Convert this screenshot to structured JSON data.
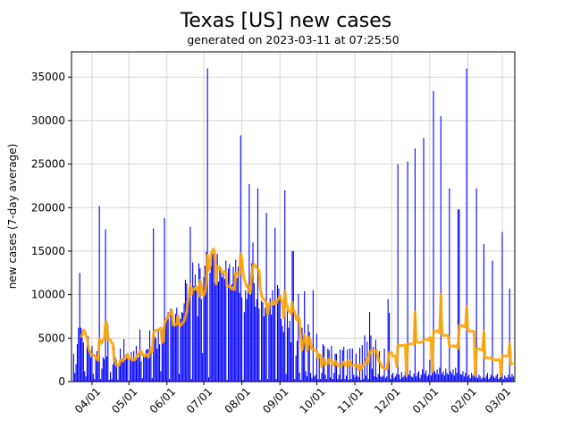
{
  "chart_data": {
    "type": "bar",
    "title": "Texas [US] new cases",
    "subtitle": "generated on 2023-03-11 at 07:25:50",
    "xlabel": "",
    "ylabel": "new cases (7-day average)",
    "ylim": [
      0,
      37900
    ],
    "y_ticks": [
      0,
      5000,
      10000,
      15000,
      20000,
      25000,
      30000,
      35000
    ],
    "x_tick_labels": [
      "04/01",
      "05/01",
      "06/01",
      "07/01",
      "08/01",
      "09/01",
      "10/01",
      "11/01",
      "12/01",
      "01/01",
      "02/01",
      "03/01"
    ],
    "dates_from": "03/17",
    "dates_to": "03/10",
    "grid": true,
    "colors": {
      "bars": "#0000ff",
      "average_line": "#ffa500",
      "grid": "#cccccc"
    },
    "daily": [
      3200,
      1000,
      2000,
      4300,
      6200,
      12500,
      6200,
      5800,
      4500,
      1200,
      600,
      4200,
      5200,
      3600,
      2800,
      4100,
      900,
      300,
      2900,
      3500,
      2600,
      20200,
      300,
      1500,
      2800,
      2600,
      17500,
      2900,
      6500,
      200,
      1100,
      300,
      2000,
      4000,
      2800,
      2500,
      200,
      1800,
      3800,
      2600,
      2700,
      4900,
      2500,
      3000,
      2800,
      100,
      2600,
      3400,
      2600,
      3500,
      2700,
      4100,
      3100,
      2800,
      6000,
      2300,
      400,
      2900,
      3000,
      3600,
      3800,
      3700,
      5900,
      3600,
      400,
      17600,
      5200,
      5000,
      3800,
      6000,
      4300,
      1200,
      5900,
      6200,
      18800,
      6800,
      7400,
      8000,
      300,
      8400,
      7700,
      7000,
      6500,
      7800,
      8500,
      7300,
      900,
      7200,
      8000,
      7900,
      9000,
      11700,
      11300,
      9300,
      10800,
      17800,
      300,
      13700,
      11000,
      12300,
      10500,
      7500,
      13600,
      13000,
      9500,
      3300,
      12000,
      13300,
      14900,
      36000,
      500,
      12500,
      13400,
      14800,
      14700,
      11400,
      11200,
      14700,
      11500,
      13300,
      13100,
      12000,
      12500,
      11800,
      13900,
      200,
      13000,
      13500,
      10700,
      11200,
      13200,
      12100,
      14000,
      11900,
      13200,
      10200,
      28300,
      9700,
      200,
      8000,
      10500,
      9500,
      11200,
      22700,
      10000,
      13600,
      16000,
      11300,
      8600,
      9500,
      22200,
      8400,
      200,
      9300,
      9100,
      7500,
      8500,
      19400,
      300,
      8400,
      9600,
      7700,
      10500,
      8800,
      17700,
      300,
      11100,
      10700,
      9900,
      7200,
      6400,
      5700,
      22000,
      900,
      8300,
      6200,
      7000,
      4500,
      15000,
      15000,
      300,
      3000,
      4700,
      10100,
      1000,
      200,
      6200,
      5200,
      10400,
      1200,
      600,
      6600,
      5700,
      1000,
      400,
      10500,
      600,
      800,
      5500,
      300,
      3200,
      300,
      1000,
      4300,
      4100,
      800,
      300,
      3800,
      3600,
      500,
      4100,
      300,
      1000,
      3200,
      3200,
      300,
      800,
      3700,
      300,
      3600,
      4000,
      300,
      700,
      3700,
      200,
      3800,
      300,
      3800,
      800,
      500,
      3200,
      700,
      500,
      3900,
      200,
      4200,
      300,
      5300,
      700,
      4600,
      300,
      8000,
      5300,
      1500,
      4000,
      600,
      4800,
      500,
      900,
      3500,
      600,
      500,
      700,
      3800,
      400,
      600,
      9500,
      7900,
      300,
      800,
      1000,
      400,
      600,
      900,
      25000,
      800,
      300,
      1100,
      500,
      700,
      1200,
      500,
      25300,
      800,
      1300,
      600,
      500,
      900,
      26800,
      600,
      1000,
      1200,
      400,
      800,
      1400,
      28000,
      900,
      1300,
      600,
      800,
      2500,
      700,
      1100,
      33400,
      1200,
      900,
      1400,
      800,
      1600,
      30500,
      900,
      1200,
      700,
      1500,
      1000,
      800,
      22200,
      1200,
      900,
      1400,
      700,
      1600,
      1000,
      19800,
      19800,
      900,
      800,
      1200,
      600,
      1000,
      36000,
      600,
      800,
      400,
      1000,
      700,
      900,
      500,
      22200,
      400,
      800,
      600,
      300,
      500,
      15800,
      400,
      700,
      1000,
      300,
      500,
      800,
      13900,
      600,
      400,
      700,
      900,
      300,
      500,
      1000,
      17200,
      300,
      700,
      500,
      400,
      800,
      10700,
      500,
      900,
      600
    ]
  }
}
